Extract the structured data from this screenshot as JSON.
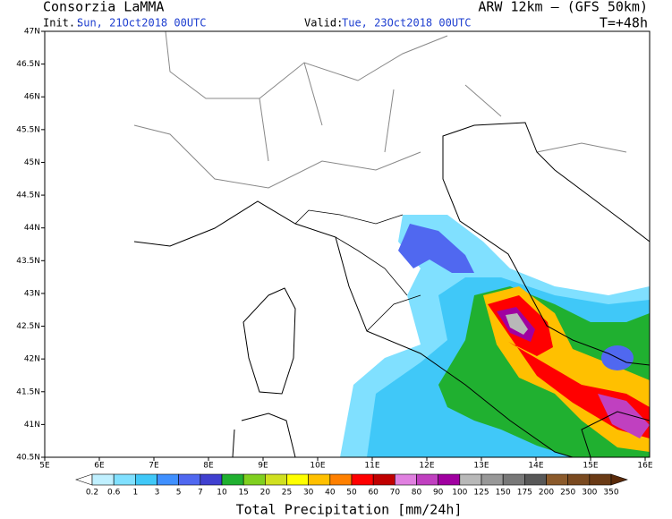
{
  "header": {
    "title": "Consorzia LaMMA",
    "init_label": "Init.:",
    "init": "Sun, 21Oct2018 00UTC",
    "valid_label": "Valid:",
    "valid": "Tue, 23Oct2018 00UTC",
    "model": "ARW 12km – (GFS 50km)",
    "lead": "T=+48h"
  },
  "map": {
    "lon_labels": [
      "5E",
      "6E",
      "7E",
      "8E",
      "9E",
      "10E",
      "11E",
      "12E",
      "13E",
      "14E",
      "15E",
      "16E"
    ],
    "lat_labels": [
      "47N",
      "46.5N",
      "46N",
      "45.5N",
      "45N",
      "44.5N",
      "44N",
      "43.5N",
      "43N",
      "42.5N",
      "42N",
      "41.5N",
      "41N",
      "40.5N"
    ]
  },
  "colorbar": {
    "labels": [
      0.2,
      0.6,
      1,
      3,
      5,
      7,
      10,
      15,
      20,
      25,
      30,
      40,
      50,
      60,
      70,
      80,
      90,
      100,
      125,
      150,
      175,
      200,
      250,
      300,
      350
    ],
    "colors": [
      "#c0f0ff",
      "#80e0ff",
      "#40c8f8",
      "#4090ff",
      "#5068f0",
      "#4040d0",
      "#20b030",
      "#80d020",
      "#d0e020",
      "#ffff00",
      "#ffc000",
      "#ff8000",
      "#ff0000",
      "#c00000",
      "#e080e0",
      "#c040c0",
      "#a000a0",
      "#b8b8b8",
      "#989898",
      "#787878",
      "#585858",
      "#8b5a2b",
      "#7a4a20",
      "#6a3a15"
    ],
    "under_color": "#ffffff",
    "over_color": "#5a2a0a",
    "title": "Total Precipitation [mm/24h]"
  }
}
